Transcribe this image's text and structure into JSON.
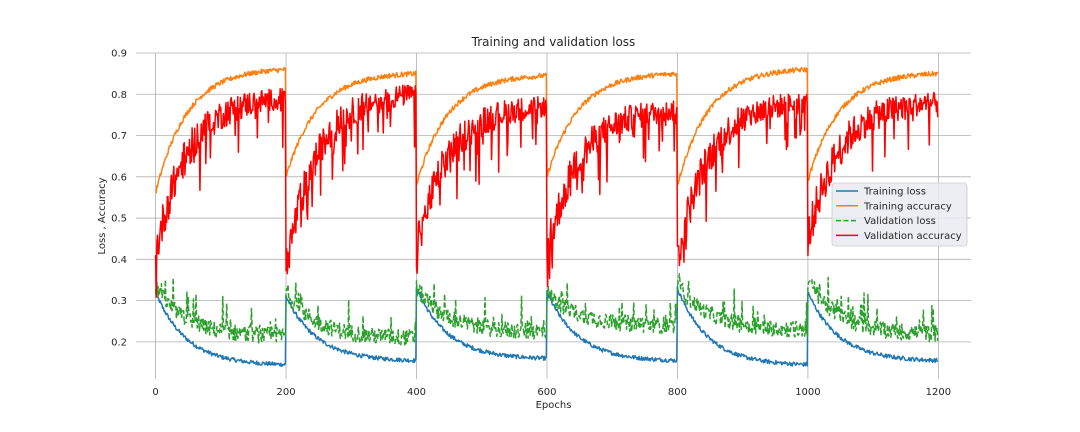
{
  "chart_data": {
    "type": "line",
    "title": "Training and validation loss",
    "xlabel": "Epochs",
    "ylabel": "Loss , Accuracy",
    "xlim": [
      -30,
      1250
    ],
    "ylim": [
      0.11,
      0.9
    ],
    "xticks": [
      0,
      200,
      400,
      600,
      800,
      1000,
      1200
    ],
    "yticks": [
      0.2,
      0.3,
      0.4,
      0.5,
      0.6,
      0.7,
      0.8,
      0.9
    ],
    "xtick_labels": [
      "0",
      "200",
      "400",
      "600",
      "800",
      "1000",
      "1200"
    ],
    "ytick_labels": [
      "0.2",
      "0.3",
      "0.4",
      "0.5",
      "0.6",
      "0.7",
      "0.8",
      "0.9"
    ],
    "grid": true,
    "legend_position": "center-right",
    "cycles": [
      {
        "start": 0,
        "end": 199
      },
      {
        "start": 200,
        "end": 399
      },
      {
        "start": 400,
        "end": 599
      },
      {
        "start": 600,
        "end": 799
      },
      {
        "start": 800,
        "end": 999
      },
      {
        "start": 1000,
        "end": 1199
      }
    ],
    "series": [
      {
        "name": "Training loss",
        "color": "#1f77b4",
        "dash": "solid",
        "cycle_start": [
          0.32,
          0.31,
          0.33,
          0.32,
          0.33,
          0.32
        ],
        "cycle_end": [
          0.145,
          0.155,
          0.16,
          0.155,
          0.145,
          0.155
        ],
        "noise": 0.005
      },
      {
        "name": "Training accuracy",
        "color": "#ff7f0e",
        "dash": "solid",
        "cycle_start": [
          0.56,
          0.6,
          0.58,
          0.6,
          0.58,
          0.59
        ],
        "cycle_end": [
          0.86,
          0.85,
          0.845,
          0.85,
          0.86,
          0.85
        ],
        "noise": 0.006
      },
      {
        "name": "Validation loss",
        "color": "#2ca02c",
        "dash": "dashed",
        "cycle_start": [
          0.33,
          0.32,
          0.33,
          0.32,
          0.34,
          0.35
        ],
        "cycle_end": [
          0.215,
          0.21,
          0.225,
          0.24,
          0.23,
          0.22
        ],
        "noise": 0.02
      },
      {
        "name": "Validation accuracy",
        "color": "#ff0000",
        "dash": "solid",
        "cycle_start": [
          0.41,
          0.38,
          0.42,
          0.41,
          0.4,
          0.45
        ],
        "cycle_end": [
          0.79,
          0.8,
          0.77,
          0.76,
          0.78,
          0.78
        ],
        "noise": 0.04
      }
    ]
  }
}
